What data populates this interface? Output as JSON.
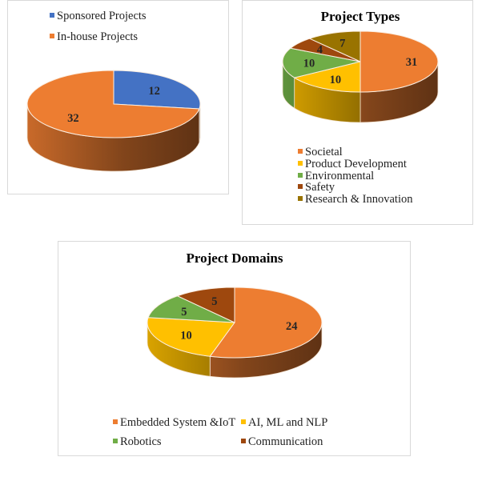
{
  "chart_data": [
    {
      "type": "pie",
      "title": "",
      "style": "3d",
      "categories": [
        "Sponsored Projects",
        "In-house Projects"
      ],
      "values": [
        12,
        32
      ],
      "colors": [
        "#4472C4",
        "#ED7D31"
      ],
      "legend": "top-left"
    },
    {
      "type": "pie",
      "title": "Project Types",
      "style": "3d",
      "categories": [
        "Societal",
        "Product Development",
        "Environmental",
        "Safety",
        "Research & Innovation"
      ],
      "values": [
        31,
        10,
        10,
        4,
        7
      ],
      "colors": [
        "#ED7D31",
        "#FFC000",
        "#70AD47",
        "#9E480E",
        "#997300"
      ],
      "legend": "bottom"
    },
    {
      "type": "pie",
      "title": "Project Domains",
      "style": "3d",
      "categories": [
        "Embedded System &IoT",
        "AI, ML and NLP",
        "Robotics",
        "Communication"
      ],
      "values": [
        24,
        10,
        5,
        5
      ],
      "colors": [
        "#ED7D31",
        "#FFC000",
        "#70AD47",
        "#9E480E"
      ],
      "legend": "bottom"
    }
  ]
}
